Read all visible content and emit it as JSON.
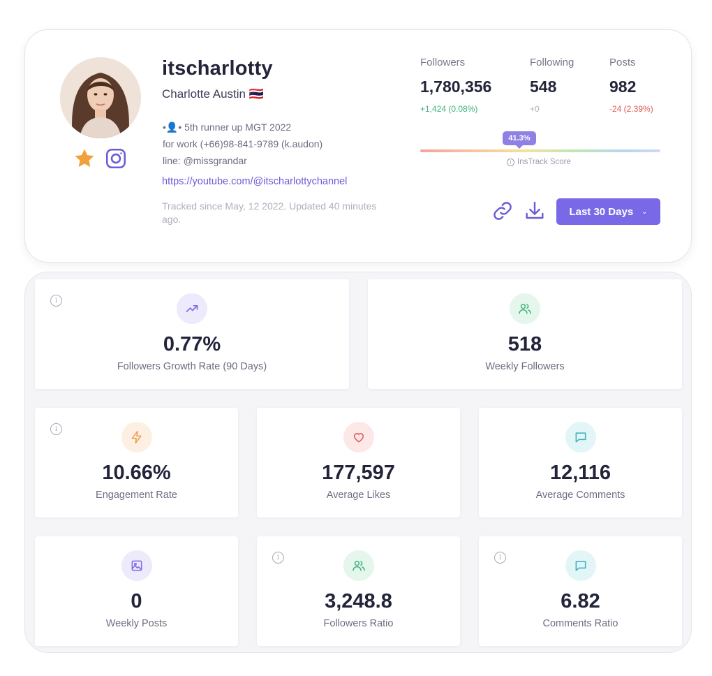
{
  "profile": {
    "username": "itscharlotty",
    "full_name": "Charlotte Austin 🇹🇭",
    "bio": [
      "•👤• 5th runner up MGT 2022",
      "for work (+66)98-841-9789 (k.audon)",
      "line: @missgrandar"
    ],
    "link": "https://youtube.com/@itscharlottychannel",
    "tracked": "Tracked since May, 12 2022. Updated 40 minutes ago.",
    "icons": [
      "avatar-photo",
      "star-icon",
      "instagram-icon"
    ]
  },
  "stats": [
    {
      "label": "Followers",
      "value": "1,780,356",
      "delta": "+1,424 (0.08%)",
      "trend": "positive"
    },
    {
      "label": "Following",
      "value": "548",
      "delta": "+0",
      "trend": "neutral"
    },
    {
      "label": "Posts",
      "value": "982",
      "delta": "-24 (2.39%)",
      "trend": "negative"
    }
  ],
  "score": {
    "badge": "41.3%",
    "value_percent": 41.3,
    "label": "InsTrack Score"
  },
  "actions": {
    "range_label": "Last 30 Days",
    "icons": [
      "link-icon",
      "download-icon",
      "chevron-down-icon"
    ]
  },
  "metrics": [
    {
      "value": "0.77%",
      "label": "Followers Growth Rate (90 Days)",
      "icon": "trending-up-icon",
      "has_info": true
    },
    {
      "value": "518",
      "label": "Weekly Followers",
      "icon": "users-icon",
      "has_info": false
    },
    {
      "value": "10.66%",
      "label": "Engagement Rate",
      "icon": "lightning-icon",
      "has_info": true
    },
    {
      "value": "177,597",
      "label": "Average Likes",
      "icon": "heart-icon",
      "has_info": false
    },
    {
      "value": "12,116",
      "label": "Average Comments",
      "icon": "comment-icon",
      "has_info": false
    },
    {
      "value": "0",
      "label": "Weekly Posts",
      "icon": "image-icon",
      "has_info": false
    },
    {
      "value": "3,248.8",
      "label": "Followers Ratio",
      "icon": "users-icon",
      "has_info": true
    },
    {
      "value": "6.82",
      "label": "Comments Ratio",
      "icon": "comment-icon",
      "has_info": true
    }
  ],
  "colors": {
    "accent": "#7a69e6",
    "positive": "#3db27a",
    "negative": "#e05a58",
    "star": "#f0a13a"
  }
}
